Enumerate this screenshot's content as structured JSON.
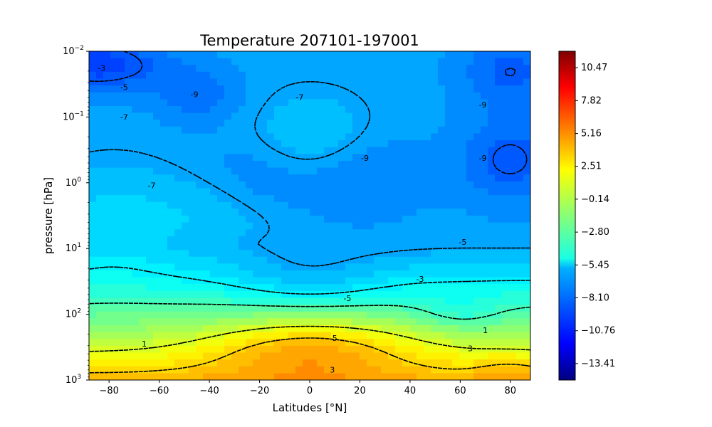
{
  "chart_data": {
    "type": "heatmap",
    "title": "Temperature 207101-197001",
    "xlabel": "Latitudes [°N]",
    "ylabel": "pressure [hPa]",
    "xlim": [
      -88,
      88
    ],
    "ylim_pressure_log": [
      1000,
      0.01
    ],
    "yscale": "log",
    "x_ticks": [
      -80,
      -60,
      -40,
      -20,
      0,
      20,
      40,
      60,
      80
    ],
    "x_tick_labels": [
      "−80",
      "−60",
      "−40",
      "−20",
      "0",
      "20",
      "40",
      "60",
      "80"
    ],
    "y_ticks": [
      0.01,
      0.1,
      1,
      10,
      100,
      1000
    ],
    "y_tick_labels": [
      {
        "base": "10",
        "exp": "−2"
      },
      {
        "base": "10",
        "exp": "−1"
      },
      {
        "base": "10",
        "exp": "0"
      },
      {
        "base": "10",
        "exp": "1"
      },
      {
        "base": "10",
        "exp": "2"
      },
      {
        "base": "10",
        "exp": "3"
      }
    ],
    "colormap": "jet",
    "colorbar_range": [
      -14.74,
      11.8
    ],
    "colorbar_ticks": [
      10.47,
      7.82,
      5.16,
      2.51,
      -0.14,
      -2.8,
      -5.45,
      -8.1,
      -10.76,
      -13.41
    ],
    "colorbar_tick_labels": [
      "10.47",
      "7.82",
      "5.16",
      "2.51",
      "−0.14",
      "−2.80",
      "−5.45",
      "−8.10",
      "−10.76",
      "−13.41"
    ],
    "contour_levels": [
      -9,
      -7,
      -5,
      -3,
      1,
      3,
      5
    ],
    "contour_labels": [
      {
        "text": "-3",
        "lat": -83,
        "p": 0.018
      },
      {
        "text": "-5",
        "lat": -74,
        "p": 0.035
      },
      {
        "text": "-7",
        "lat": -74,
        "p": 0.1
      },
      {
        "text": "-9",
        "lat": -46,
        "p": 0.045
      },
      {
        "text": "-7",
        "lat": -4,
        "p": 0.05
      },
      {
        "text": "-9",
        "lat": 69,
        "p": 0.065
      },
      {
        "text": "-9",
        "lat": 22,
        "p": 0.42
      },
      {
        "text": "-9",
        "lat": 69,
        "p": 0.42
      },
      {
        "text": "-7",
        "lat": -63,
        "p": 1.1
      },
      {
        "text": "-5",
        "lat": 61,
        "p": 8.0
      },
      {
        "text": "-3",
        "lat": 44,
        "p": 29
      },
      {
        "text": "-5",
        "lat": 15,
        "p": 57
      },
      {
        "text": "1",
        "lat": -66,
        "p": 280
      },
      {
        "text": "5",
        "lat": 10,
        "p": 230
      },
      {
        "text": "3",
        "lat": 64,
        "p": 330
      },
      {
        "text": "3",
        "lat": 9,
        "p": 700
      },
      {
        "text": "1",
        "lat": 70,
        "p": 175
      }
    ]
  }
}
